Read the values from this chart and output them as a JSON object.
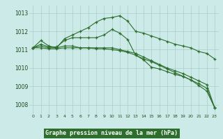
{
  "x": [
    0,
    1,
    2,
    3,
    4,
    5,
    6,
    7,
    8,
    9,
    10,
    11,
    12,
    13,
    14,
    15,
    16,
    17,
    18,
    19,
    20,
    21,
    22,
    23
  ],
  "series": [
    [
      1011.1,
      1011.5,
      1011.2,
      1011.1,
      1011.6,
      1011.8,
      1012.0,
      1012.2,
      1012.5,
      1012.7,
      1012.75,
      1012.85,
      1012.55,
      1012.0,
      1011.9,
      1011.75,
      1011.6,
      1011.45,
      1011.3,
      1011.2,
      1011.1,
      1010.9,
      1010.8,
      1010.5
    ],
    [
      1011.1,
      1011.3,
      1011.15,
      1011.15,
      1011.5,
      1011.65,
      1011.65,
      1011.65,
      1011.65,
      1011.8,
      1012.1,
      1011.9,
      1011.55,
      1010.7,
      1010.45,
      1010.05,
      1009.95,
      1009.8,
      1009.65,
      1009.55,
      1009.35,
      1009.05,
      1008.75,
      1007.85
    ],
    [
      1011.1,
      1011.1,
      1011.05,
      1011.05,
      1011.1,
      1011.1,
      1011.1,
      1011.1,
      1011.05,
      1011.05,
      1011.0,
      1010.95,
      1010.85,
      1010.7,
      1010.5,
      1010.35,
      1010.15,
      1009.95,
      1009.75,
      1009.55,
      1009.35,
      1009.15,
      1008.9,
      1007.85
    ],
    [
      1011.1,
      1011.2,
      1011.1,
      1011.1,
      1011.2,
      1011.2,
      1011.1,
      1011.1,
      1011.1,
      1011.1,
      1011.1,
      1011.0,
      1010.9,
      1010.8,
      1010.6,
      1010.4,
      1010.2,
      1010.0,
      1009.85,
      1009.7,
      1009.5,
      1009.3,
      1009.1,
      1007.85
    ]
  ],
  "line_color": "#2d6e2d",
  "bg_color": "#cceae7",
  "grid_color": "#aaccca",
  "xlabel": "Graphe pression niveau de la mer (hPa)",
  "xlabel_bg": "#2d6e2d",
  "xlabel_color": "#ffffff",
  "tick_label_color": "#1a4a1a",
  "ylim": [
    1007.5,
    1013.4
  ],
  "yticks": [
    1008,
    1009,
    1010,
    1011,
    1012,
    1013
  ],
  "xticks": [
    0,
    1,
    2,
    3,
    4,
    5,
    6,
    7,
    8,
    9,
    10,
    11,
    12,
    13,
    14,
    15,
    16,
    17,
    18,
    19,
    20,
    21,
    22,
    23
  ],
  "figsize": [
    3.2,
    2.0
  ],
  "dpi": 100
}
